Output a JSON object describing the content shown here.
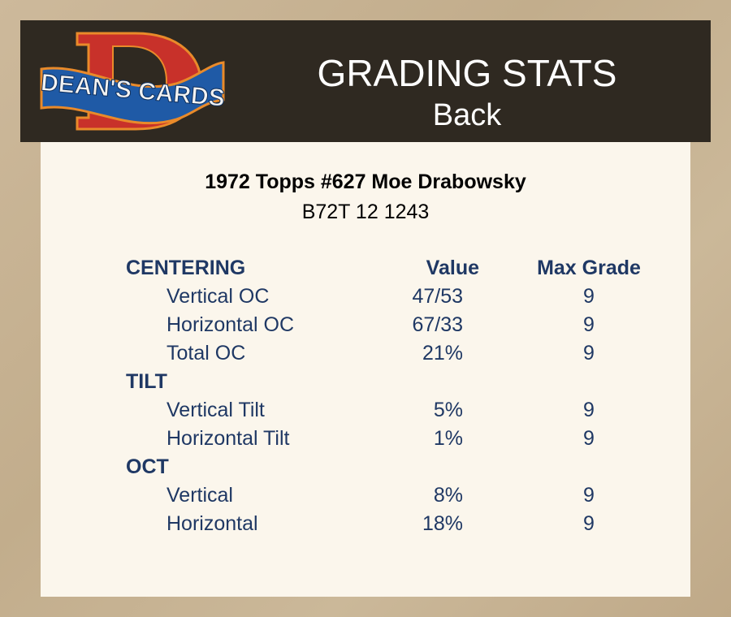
{
  "header": {
    "logo_text": "DEAN'S CARDS",
    "title": "GRADING STATS",
    "subtitle": "Back"
  },
  "card": {
    "name": "1972 Topps #627 Moe Drabowsky",
    "id": "B72T 12 1243"
  },
  "columns": {
    "value": "Value",
    "max_grade": "Max Grade"
  },
  "sections": [
    {
      "label": "CENTERING",
      "rows": [
        {
          "label": "Vertical OC",
          "value": "47/53",
          "max": "9"
        },
        {
          "label": "Horizontal OC",
          "value": "67/33",
          "max": "9"
        },
        {
          "label": "Total OC",
          "value": "21%",
          "max": "9"
        }
      ]
    },
    {
      "label": "TILT",
      "rows": [
        {
          "label": "Vertical Tilt",
          "value": "5%",
          "max": "9"
        },
        {
          "label": "Horizontal Tilt",
          "value": "1%",
          "max": "9"
        }
      ]
    },
    {
      "label": "OCT",
      "rows": [
        {
          "label": "Vertical",
          "value": "8%",
          "max": "9"
        },
        {
          "label": "Horizontal",
          "value": "18%",
          "max": "9"
        }
      ]
    }
  ],
  "colors": {
    "header_bg": "#2f2921",
    "text": "#1f3864",
    "card_bg": "#fbf6ec",
    "logo_red": "#c8312a",
    "logo_blue": "#1f5aa6"
  }
}
